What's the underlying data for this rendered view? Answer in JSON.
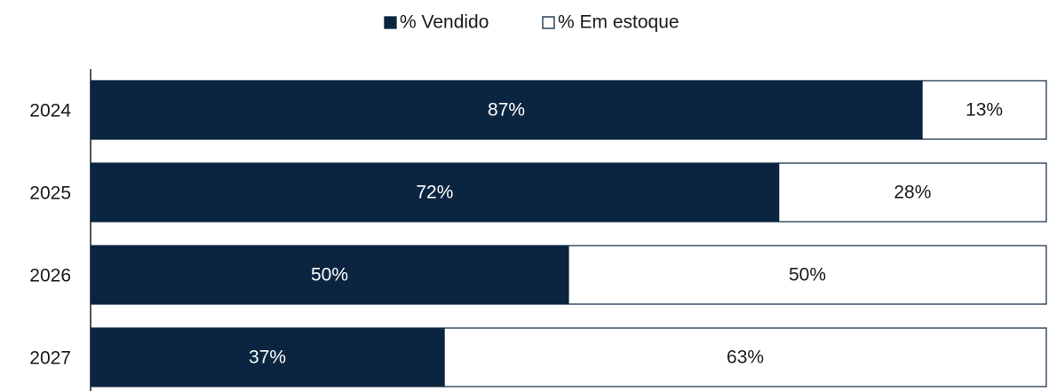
{
  "chart_data": {
    "type": "stacked-barh",
    "categories": [
      "2024",
      "2025",
      "2026",
      "2027"
    ],
    "series": [
      {
        "name": "% Vendido",
        "color": "#0b2540",
        "values": [
          87,
          72,
          50,
          37
        ],
        "value_labels": [
          "87%",
          "72%",
          "50%",
          "37%"
        ]
      },
      {
        "name": "% Em estoque",
        "color": "#ffffff",
        "values": [
          13,
          28,
          50,
          63
        ],
        "value_labels": [
          "13%",
          "28%",
          "50%",
          "63%"
        ]
      }
    ],
    "xlim": [
      0,
      100
    ],
    "legend": "top"
  }
}
